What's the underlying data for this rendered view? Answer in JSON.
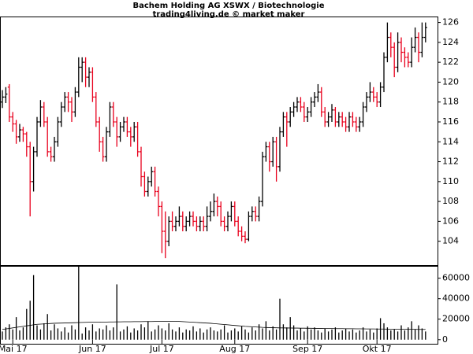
{
  "chart_data": [
    {
      "type": "ohlc",
      "title": "Bachem Holding AG XSWX / Biotechnologie",
      "subtitle": "trading4living.de © market maker",
      "up_color": "#000000",
      "down_color": "#e8001c",
      "ylim": [
        101.6,
        126.6
      ],
      "yticks": [
        104,
        106,
        108,
        110,
        112,
        114,
        116,
        118,
        120,
        122,
        124,
        126
      ],
      "ohlc": [
        [
          118.0,
          119.2,
          117.4,
          118.5
        ],
        [
          118.5,
          119.5,
          117.9,
          118.8
        ],
        [
          119.5,
          119.8,
          116.0,
          116.5
        ],
        [
          116.5,
          117.0,
          115.0,
          115.8
        ],
        [
          115.8,
          116.2,
          113.8,
          114.5
        ],
        [
          114.5,
          115.8,
          114.0,
          115.2
        ],
        [
          115.2,
          115.5,
          114.0,
          114.8
        ],
        [
          114.8,
          115.0,
          112.5,
          113.5
        ],
        [
          113.5,
          114.0,
          106.5,
          110.0
        ],
        [
          110.0,
          113.5,
          109.0,
          113.0
        ],
        [
          113.0,
          116.5,
          112.5,
          116.0
        ],
        [
          116.0,
          118.2,
          115.5,
          117.5
        ],
        [
          117.5,
          118.0,
          115.5,
          116.0
        ],
        [
          116.0,
          116.5,
          112.5,
          113.0
        ],
        [
          113.0,
          113.5,
          112.0,
          112.5
        ],
        [
          112.5,
          114.5,
          112.0,
          114.0
        ],
        [
          114.0,
          116.5,
          113.5,
          116.0
        ],
        [
          116.0,
          118.0,
          115.5,
          117.5
        ],
        [
          117.5,
          119.0,
          117.0,
          118.5
        ],
        [
          118.5,
          119.0,
          117.0,
          118.0
        ],
        [
          118.0,
          118.5,
          116.0,
          117.0
        ],
        [
          117.0,
          119.5,
          116.5,
          119.0
        ],
        [
          119.0,
          122.5,
          118.5,
          121.5
        ],
        [
          121.5,
          122.5,
          120.0,
          122.0
        ],
        [
          122.0,
          122.5,
          119.5,
          120.5
        ],
        [
          120.5,
          121.5,
          119.5,
          121.0
        ],
        [
          121.0,
          121.5,
          118.0,
          118.5
        ],
        [
          118.5,
          119.0,
          115.5,
          116.0
        ],
        [
          116.0,
          116.5,
          113.0,
          114.0
        ],
        [
          114.0,
          114.5,
          112.0,
          112.5
        ],
        [
          112.5,
          115.5,
          112.0,
          115.0
        ],
        [
          115.0,
          118.0,
          114.5,
          117.5
        ],
        [
          117.5,
          118.0,
          115.5,
          116.0
        ],
        [
          116.0,
          116.5,
          113.5,
          114.5
        ],
        [
          114.5,
          116.0,
          114.0,
          115.5
        ],
        [
          115.5,
          116.5,
          115.0,
          116.0
        ],
        [
          116.0,
          116.5,
          114.5,
          115.0
        ],
        [
          115.0,
          115.5,
          113.5,
          114.5
        ],
        [
          114.5,
          116.0,
          114.0,
          115.5
        ],
        [
          115.5,
          116.0,
          112.5,
          113.0
        ],
        [
          113.0,
          113.5,
          109.5,
          110.5
        ],
        [
          110.5,
          111.0,
          108.5,
          109.0
        ],
        [
          109.0,
          110.5,
          108.5,
          110.0
        ],
        [
          110.0,
          111.5,
          109.5,
          111.0
        ],
        [
          111.0,
          111.5,
          108.5,
          109.0
        ],
        [
          109.0,
          109.5,
          106.5,
          107.5
        ],
        [
          107.5,
          108.0,
          102.8,
          105.0
        ],
        [
          105.0,
          107.0,
          102.3,
          104.0
        ],
        [
          104.0,
          106.5,
          103.5,
          106.0
        ],
        [
          106.0,
          107.0,
          105.0,
          105.5
        ],
        [
          105.5,
          106.5,
          105.0,
          106.0
        ],
        [
          106.0,
          107.5,
          105.5,
          106.5
        ],
        [
          106.5,
          107.0,
          105.0,
          105.5
        ],
        [
          105.5,
          106.5,
          105.0,
          106.0
        ],
        [
          106.0,
          107.0,
          105.5,
          106.5
        ],
        [
          106.5,
          107.0,
          105.5,
          106.0
        ],
        [
          106.0,
          106.5,
          105.0,
          105.5
        ],
        [
          105.5,
          106.5,
          105.0,
          106.0
        ],
        [
          106.0,
          106.5,
          105.0,
          105.5
        ],
        [
          105.5,
          107.5,
          105.0,
          106.5
        ],
        [
          106.5,
          108.0,
          106.0,
          107.0
        ],
        [
          107.0,
          108.8,
          106.5,
          108.0
        ],
        [
          108.0,
          108.5,
          106.5,
          107.5
        ],
        [
          107.5,
          108.0,
          105.5,
          106.0
        ],
        [
          106.0,
          106.5,
          105.0,
          105.5
        ],
        [
          105.5,
          107.0,
          105.0,
          106.5
        ],
        [
          106.5,
          108.0,
          106.0,
          107.5
        ],
        [
          107.5,
          108.0,
          105.5,
          106.0
        ],
        [
          106.0,
          106.5,
          104.5,
          105.0
        ],
        [
          105.0,
          105.5,
          104.0,
          104.5
        ],
        [
          104.5,
          105.0,
          103.8,
          104.2
        ],
        [
          104.2,
          107.0,
          104.0,
          106.5
        ],
        [
          106.5,
          107.5,
          106.0,
          107.0
        ],
        [
          107.0,
          107.5,
          106.0,
          106.5
        ],
        [
          106.5,
          108.5,
          106.0,
          108.0
        ],
        [
          108.0,
          113.0,
          107.5,
          112.5
        ],
        [
          112.5,
          114.0,
          112.0,
          113.5
        ],
        [
          113.5,
          114.0,
          111.0,
          112.0
        ],
        [
          112.0,
          114.5,
          111.5,
          114.0
        ],
        [
          114.0,
          114.5,
          110.0,
          111.5
        ],
        [
          111.5,
          115.5,
          111.0,
          115.0
        ],
        [
          115.0,
          117.0,
          114.5,
          116.5
        ],
        [
          116.5,
          117.0,
          113.5,
          116.0
        ],
        [
          116.0,
          117.5,
          115.5,
          117.0
        ],
        [
          117.0,
          118.0,
          116.5,
          117.5
        ],
        [
          117.5,
          118.5,
          117.0,
          118.0
        ],
        [
          118.0,
          118.5,
          117.0,
          117.5
        ],
        [
          117.5,
          118.0,
          116.0,
          116.5
        ],
        [
          116.5,
          117.5,
          116.0,
          117.0
        ],
        [
          117.0,
          118.5,
          116.5,
          118.0
        ],
        [
          118.0,
          119.0,
          117.5,
          118.5
        ],
        [
          118.5,
          119.8,
          118.0,
          119.0
        ],
        [
          119.0,
          119.5,
          116.5,
          117.0
        ],
        [
          117.0,
          117.5,
          115.5,
          116.0
        ],
        [
          116.0,
          117.0,
          115.5,
          116.5
        ],
        [
          116.5,
          117.8,
          116.0,
          117.2
        ],
        [
          117.2,
          117.5,
          115.5,
          116.0
        ],
        [
          116.0,
          117.0,
          115.5,
          116.5
        ],
        [
          116.5,
          117.0,
          115.5,
          116.0
        ],
        [
          116.0,
          116.5,
          115.0,
          115.5
        ],
        [
          115.5,
          117.0,
          115.0,
          116.5
        ],
        [
          116.5,
          117.0,
          115.5,
          116.0
        ],
        [
          116.0,
          116.5,
          115.0,
          115.5
        ],
        [
          115.5,
          116.5,
          115.0,
          116.0
        ],
        [
          116.0,
          118.0,
          115.5,
          117.5
        ],
        [
          117.5,
          119.0,
          117.0,
          118.5
        ],
        [
          118.5,
          120.0,
          118.0,
          119.0
        ],
        [
          119.0,
          119.5,
          118.0,
          118.5
        ],
        [
          118.5,
          119.0,
          117.5,
          118.0
        ],
        [
          118.0,
          120.0,
          117.5,
          119.5
        ],
        [
          119.5,
          123.0,
          119.0,
          122.5
        ],
        [
          122.5,
          126.0,
          122.0,
          124.5
        ],
        [
          124.5,
          125.0,
          122.5,
          123.5
        ],
        [
          123.5,
          124.0,
          120.5,
          121.5
        ],
        [
          121.5,
          125.0,
          121.0,
          124.0
        ],
        [
          124.0,
          124.5,
          122.0,
          123.0
        ],
        [
          123.0,
          123.5,
          121.5,
          122.5
        ],
        [
          122.5,
          123.0,
          121.5,
          122.0
        ],
        [
          122.0,
          124.5,
          121.5,
          123.5
        ],
        [
          123.5,
          125.5,
          123.0,
          124.5
        ],
        [
          124.5,
          125.0,
          122.0,
          123.0
        ],
        [
          123.0,
          126.0,
          122.5,
          124.5
        ],
        [
          124.5,
          126.0,
          124.0,
          125.5
        ]
      ]
    },
    {
      "type": "volume",
      "color": "#000000",
      "ma_color": "#000000",
      "ylim": [
        -4000,
        72000
      ],
      "yticks": [
        0,
        20000,
        40000,
        60000
      ],
      "categories": [
        null,
        null,
        null,
        "Mai 17",
        null,
        null,
        null,
        null,
        null,
        null,
        null,
        null,
        null,
        null,
        null,
        null,
        null,
        null,
        null,
        null,
        null,
        null,
        null,
        null,
        null,
        null,
        "Jun 17",
        null,
        null,
        null,
        null,
        null,
        null,
        null,
        null,
        null,
        null,
        null,
        null,
        null,
        null,
        null,
        null,
        null,
        null,
        null,
        "Jul 17",
        null,
        null,
        null,
        null,
        null,
        null,
        null,
        null,
        null,
        null,
        null,
        null,
        null,
        null,
        null,
        null,
        null,
        null,
        null,
        null,
        "Aug 17",
        null,
        null,
        null,
        null,
        null,
        null,
        null,
        null,
        null,
        null,
        null,
        null,
        null,
        null,
        null,
        null,
        null,
        null,
        null,
        null,
        "Sep 17",
        null,
        null,
        null,
        null,
        null,
        null,
        null,
        null,
        null,
        null,
        null,
        null,
        null,
        null,
        null,
        null,
        null,
        null,
        null,
        "Okt 17",
        null,
        null,
        null,
        null,
        null,
        null,
        null,
        null,
        null,
        null,
        null,
        null,
        null,
        null
      ],
      "values": [
        8000,
        12000,
        15000,
        10000,
        22000,
        9000,
        12000,
        30000,
        38000,
        63000,
        14000,
        10000,
        16000,
        25000,
        9000,
        15000,
        11000,
        8000,
        12000,
        7000,
        14000,
        10000,
        72000,
        6000,
        12000,
        9000,
        15000,
        8000,
        11000,
        10000,
        14000,
        9000,
        12000,
        54000,
        8000,
        10000,
        13000,
        7000,
        11000,
        9000,
        15000,
        12000,
        18000,
        8000,
        10000,
        14000,
        11000,
        9000,
        16000,
        10000,
        8000,
        12000,
        7000,
        10000,
        9000,
        13000,
        8000,
        11000,
        7000,
        10000,
        12000,
        9000,
        8000,
        10000,
        14000,
        7000,
        9000,
        11000,
        8000,
        13000,
        10000,
        7000,
        12000,
        9000,
        15000,
        11000,
        18000,
        9000,
        13000,
        10000,
        40000,
        15000,
        12000,
        22000,
        14000,
        9000,
        11000,
        8000,
        13000,
        10000,
        12000,
        9000,
        7000,
        11000,
        8000,
        10000,
        12000,
        7000,
        9000,
        11000,
        8000,
        10000,
        7000,
        9000,
        12000,
        8000,
        10000,
        7000,
        11000,
        21000,
        16000,
        12000,
        9000,
        10000,
        8000,
        14000,
        9000,
        12000,
        18000,
        10000,
        14000,
        11000,
        8000
      ],
      "ma": [
        10000,
        10500,
        11000,
        11500,
        12000,
        12500,
        13000,
        13500,
        14000,
        14500,
        15000,
        15200,
        15400,
        15600,
        15800,
        16000,
        16100,
        16200,
        16300,
        16400,
        16500,
        16600,
        16700,
        16800,
        16900,
        17000,
        17000,
        17100,
        17100,
        17200,
        17200,
        17300,
        17300,
        17400,
        17400,
        17500,
        17500,
        17500,
        17600,
        17600,
        17600,
        17700,
        17700,
        17700,
        17800,
        17800,
        17800,
        17900,
        17900,
        18000,
        18000,
        17800,
        17600,
        17400,
        17200,
        17000,
        16800,
        16600,
        16400,
        16200,
        16000,
        15700,
        15400,
        15100,
        14800,
        14500,
        14200,
        13900,
        13600,
        13300,
        13000,
        12800,
        12600,
        12400,
        12200,
        12000,
        11900,
        11800,
        11700,
        11600,
        11500,
        11500,
        11400,
        11400,
        11300,
        11300,
        11200,
        11200,
        11100,
        11100,
        11000,
        11000,
        11000,
        10900,
        10900,
        10900,
        10800,
        10800,
        10800,
        10700,
        10700,
        10700,
        10600,
        10600,
        10600,
        10500,
        10500,
        10500,
        10400,
        10400,
        10400,
        10300,
        10300,
        10300,
        10200,
        10200,
        10200,
        10100,
        10100,
        10100,
        10000,
        10000,
        10000
      ]
    }
  ]
}
